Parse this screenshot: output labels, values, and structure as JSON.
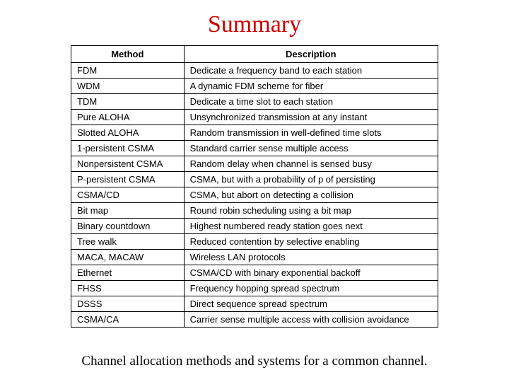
{
  "title": "Summary",
  "caption": "Channel allocation methods and systems for a common channel.",
  "table": {
    "headers": {
      "method": "Method",
      "description": "Description"
    },
    "rows": [
      {
        "method": "FDM",
        "description": "Dedicate a frequency band to each station"
      },
      {
        "method": "WDM",
        "description": "A dynamic FDM scheme for fiber"
      },
      {
        "method": "TDM",
        "description": "Dedicate a time slot to each station"
      },
      {
        "method": "Pure ALOHA",
        "description": "Unsynchronized transmission at any instant"
      },
      {
        "method": "Slotted ALOHA",
        "description": "Random transmission in well-defined time slots"
      },
      {
        "method": "1-persistent CSMA",
        "description": "Standard carrier sense multiple access"
      },
      {
        "method": "Nonpersistent CSMA",
        "description": "Random delay when channel is sensed busy"
      },
      {
        "method": "P-persistent CSMA",
        "description": "CSMA, but with a probability of p of persisting"
      },
      {
        "method": "CSMA/CD",
        "description": "CSMA, but abort on detecting a collision"
      },
      {
        "method": "Bit map",
        "description": "Round robin scheduling using a bit map"
      },
      {
        "method": "Binary countdown",
        "description": "Highest numbered ready station goes next"
      },
      {
        "method": "Tree walk",
        "description": "Reduced contention by selective enabling"
      },
      {
        "method": "MACA, MACAW",
        "description": "Wireless LAN protocols"
      },
      {
        "method": "Ethernet",
        "description": "CSMA/CD with binary exponential backoff"
      },
      {
        "method": "FHSS",
        "description": "Frequency hopping spread spectrum"
      },
      {
        "method": "DSSS",
        "description": "Direct sequence spread spectrum"
      },
      {
        "method": "CSMA/CA",
        "description": "Carrier sense multiple access with collision avoidance"
      }
    ]
  },
  "style": {
    "title_color": "#cc0000",
    "title_fontsize": 34,
    "body_fontsize": 13,
    "caption_fontsize": 19,
    "border_color": "#000000",
    "background_color": "#ffffff",
    "method_col_width": 160,
    "desc_col_width": 360
  }
}
